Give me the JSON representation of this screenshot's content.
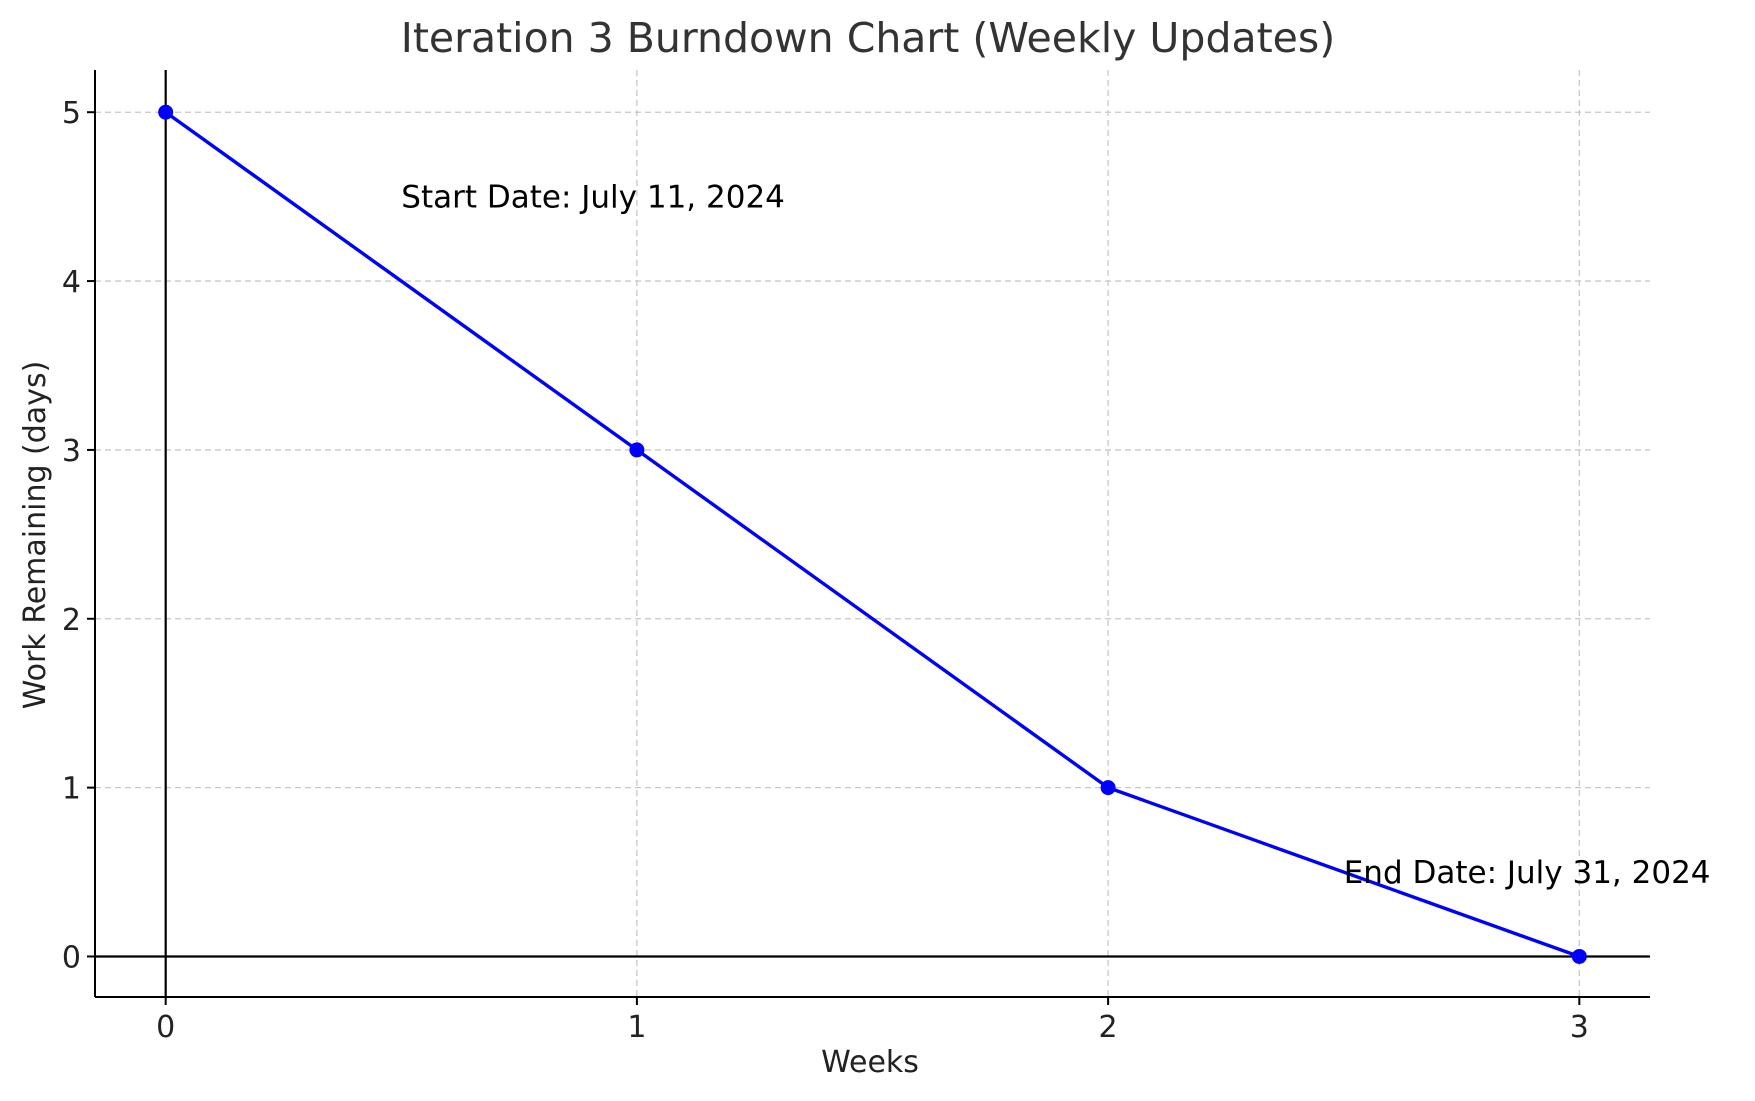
{
  "chart_data": {
    "type": "line",
    "title": "Iteration 3 Burndown Chart (Weekly Updates)",
    "xlabel": "Weeks",
    "ylabel": "Work Remaining (days)",
    "x": [
      0,
      1,
      2,
      3
    ],
    "series": [
      {
        "values": [
          5,
          3,
          1,
          0
        ],
        "color": "#0000ff"
      }
    ],
    "xlim": [
      -0.15,
      3.15
    ],
    "ylim": [
      -0.24,
      5.25
    ],
    "xticks": [
      0,
      1,
      2,
      3
    ],
    "yticks": [
      0,
      1,
      2,
      3,
      4,
      5
    ],
    "grid": true,
    "reference_lines": {
      "x": 0,
      "y": 0
    },
    "annotations": [
      {
        "text": "Start Date: July 11, 2024",
        "x": 0.5,
        "y": 4.5
      },
      {
        "text": "End Date: July 31, 2024",
        "x": 2.5,
        "y": 0.5
      }
    ]
  }
}
